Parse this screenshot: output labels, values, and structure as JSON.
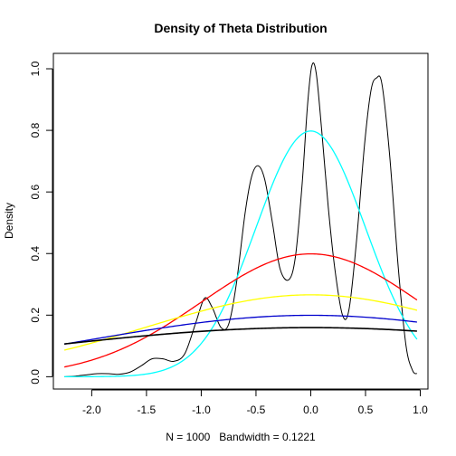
{
  "chart_data": {
    "type": "line",
    "title": "Density of Theta Distribution",
    "xlabel": "N = 1000   Bandwidth = 0.1221",
    "ylabel": "Density",
    "xlim": [
      -2.35,
      1.07
    ],
    "ylim": [
      -0.04,
      1.05
    ],
    "x_ticks": [
      -2.0,
      -1.5,
      -1.0,
      -0.5,
      0.0,
      0.5,
      1.0
    ],
    "x_tick_labels": [
      "-2.0",
      "-1.5",
      "-1.0",
      "-0.5",
      "0.0",
      "0.5",
      "1.0"
    ],
    "y_ticks": [
      0.0,
      0.2,
      0.4,
      0.6,
      0.8,
      1.0
    ],
    "y_tick_labels": [
      "0.0",
      "0.2",
      "0.4",
      "0.6",
      "0.8",
      "1.0"
    ],
    "grid": false,
    "legend": "none",
    "series": [
      {
        "color": "#000000",
        "stroke": "thin",
        "kind": "kernel-density",
        "points": [
          [
            -2.25,
            0.0
          ],
          [
            -2.15,
            0.002
          ],
          [
            -2.05,
            0.006
          ],
          [
            -1.95,
            0.01
          ],
          [
            -1.85,
            0.01
          ],
          [
            -1.75,
            0.008
          ],
          [
            -1.65,
            0.015
          ],
          [
            -1.55,
            0.035
          ],
          [
            -1.45,
            0.058
          ],
          [
            -1.35,
            0.058
          ],
          [
            -1.25,
            0.05
          ],
          [
            -1.15,
            0.075
          ],
          [
            -1.05,
            0.175
          ],
          [
            -0.97,
            0.255
          ],
          [
            -0.9,
            0.225
          ],
          [
            -0.82,
            0.16
          ],
          [
            -0.75,
            0.17
          ],
          [
            -0.68,
            0.3
          ],
          [
            -0.6,
            0.53
          ],
          [
            -0.54,
            0.65
          ],
          [
            -0.48,
            0.685
          ],
          [
            -0.42,
            0.64
          ],
          [
            -0.35,
            0.5
          ],
          [
            -0.28,
            0.35
          ],
          [
            -0.2,
            0.315
          ],
          [
            -0.14,
            0.39
          ],
          [
            -0.08,
            0.62
          ],
          [
            -0.03,
            0.88
          ],
          [
            0.01,
            1.01
          ],
          [
            0.05,
            0.985
          ],
          [
            0.1,
            0.8
          ],
          [
            0.16,
            0.55
          ],
          [
            0.22,
            0.35
          ],
          [
            0.29,
            0.2
          ],
          [
            0.35,
            0.22
          ],
          [
            0.42,
            0.45
          ],
          [
            0.49,
            0.75
          ],
          [
            0.55,
            0.93
          ],
          [
            0.6,
            0.97
          ],
          [
            0.65,
            0.95
          ],
          [
            0.72,
            0.72
          ],
          [
            0.8,
            0.35
          ],
          [
            0.87,
            0.1
          ],
          [
            0.93,
            0.02
          ],
          [
            0.97,
            0.01
          ]
        ]
      },
      {
        "color": "#00ffff",
        "kind": "normal",
        "mean": 0.0,
        "sd": 0.5
      },
      {
        "color": "#ff0000",
        "kind": "normal",
        "mean": 0.0,
        "sd": 1.0
      },
      {
        "color": "#ffff00",
        "kind": "normal",
        "mean": 0.0,
        "sd": 1.5
      },
      {
        "color": "#0000cd",
        "kind": "normal",
        "mean": 0.0,
        "sd": 2.0
      },
      {
        "color": "#000000",
        "stroke": "thick",
        "kind": "normal",
        "mean": 0.0,
        "sd": 2.5
      }
    ],
    "normal_x_range": [
      -2.25,
      0.97
    ]
  }
}
